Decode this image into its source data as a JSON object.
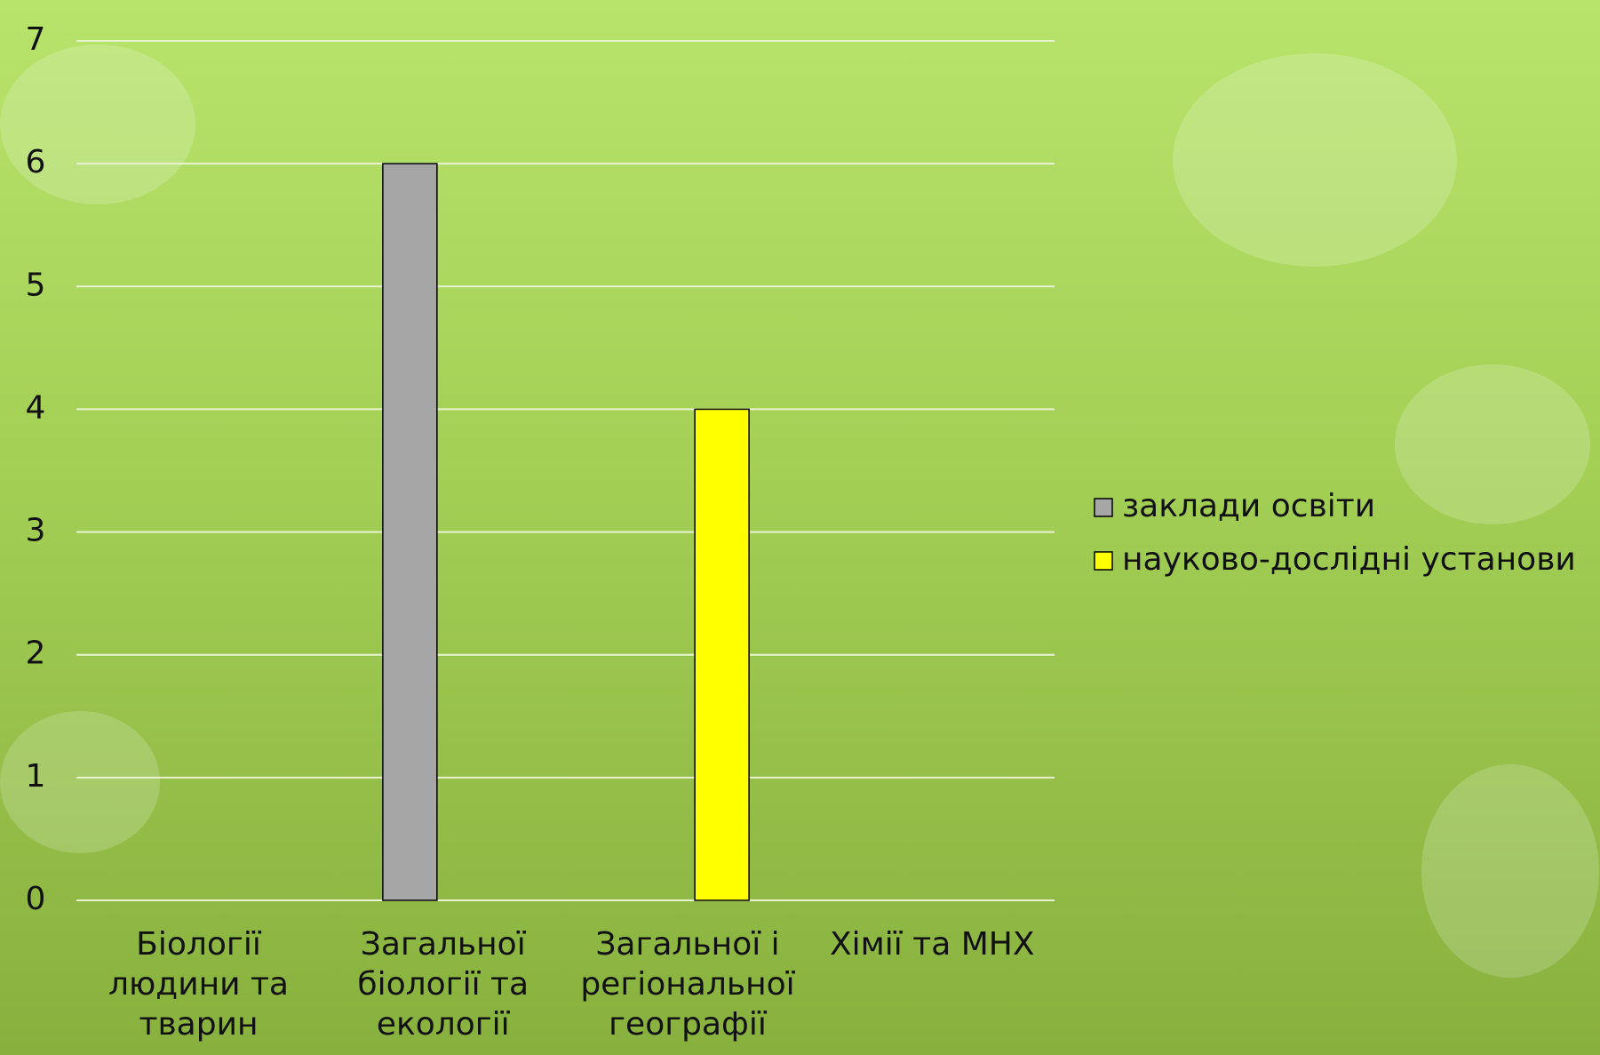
{
  "chart_data": {
    "type": "bar",
    "categories": [
      "Біології людини та тварин",
      "Загальної біології та екології",
      "Загальної і регіональної географії",
      "Хімії та МНХ"
    ],
    "series": [
      {
        "name": "заклади освіти",
        "color": "#a6a6a6",
        "values": [
          0,
          6,
          0,
          0
        ]
      },
      {
        "name": "науково-дослідні установи",
        "color": "#ffff00",
        "values": [
          0,
          0,
          4,
          0
        ]
      }
    ],
    "ylim": [
      0,
      7
    ],
    "yticks": [
      0,
      1,
      2,
      3,
      4,
      5,
      6,
      7
    ],
    "grid": true,
    "legend": "right"
  }
}
